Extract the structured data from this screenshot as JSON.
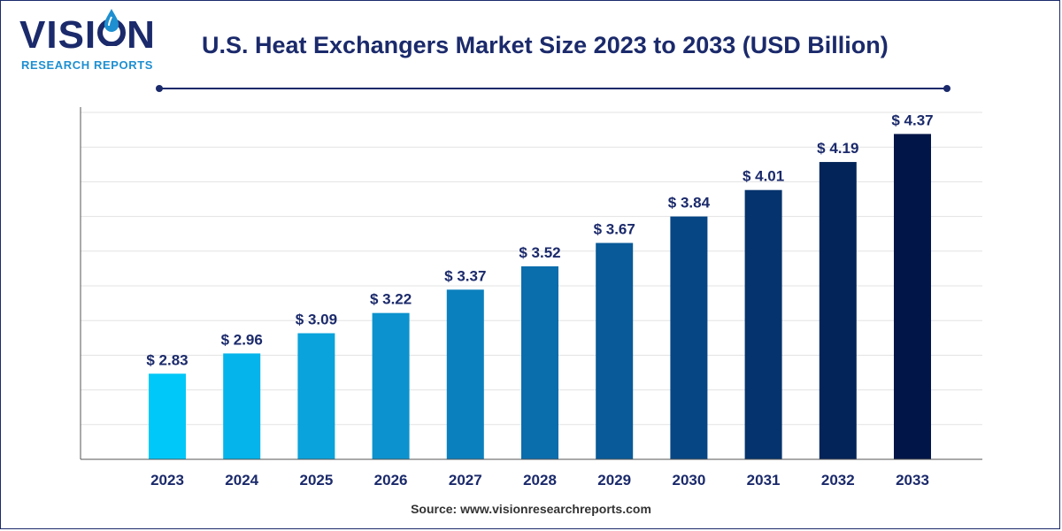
{
  "brand": {
    "name_left": "VISI",
    "name_right": "N",
    "tagline": "RESEARCH REPORTS",
    "navy": "#1b2a6b",
    "accent": "#1e8fd0"
  },
  "title": "U.S. Heat Exchangers Market Size 2023 to 2033 (USD Billion)",
  "source_text": "Source: www.visionresearchreports.com",
  "chart_data": {
    "type": "bar",
    "title": "U.S. Heat Exchangers Market Size 2023 to 2033 (USD Billion)",
    "xlabel": "",
    "ylabel": "",
    "categories": [
      "2023",
      "2024",
      "2025",
      "2026",
      "2027",
      "2028",
      "2029",
      "2030",
      "2031",
      "2032",
      "2033"
    ],
    "values": [
      2.83,
      2.96,
      3.09,
      3.22,
      3.37,
      3.52,
      3.67,
      3.84,
      4.01,
      4.19,
      4.37
    ],
    "labels": [
      "$ 2.83",
      "$ 2.96",
      "$ 3.09",
      "$ 3.22",
      "$ 3.37",
      "$ 3.52",
      "$ 3.67",
      "$ 3.84",
      "$ 4.01",
      "$ 4.19",
      "$ 4.37"
    ],
    "ylim": [
      2.28,
      4.52
    ],
    "grid": true,
    "colors": [
      "#00c8f8",
      "#04b4ea",
      "#0aa3dc",
      "#0c92ce",
      "#0b80be",
      "#0a6dac",
      "#085a99",
      "#074684",
      "#05336d",
      "#032458",
      "#021548"
    ]
  }
}
